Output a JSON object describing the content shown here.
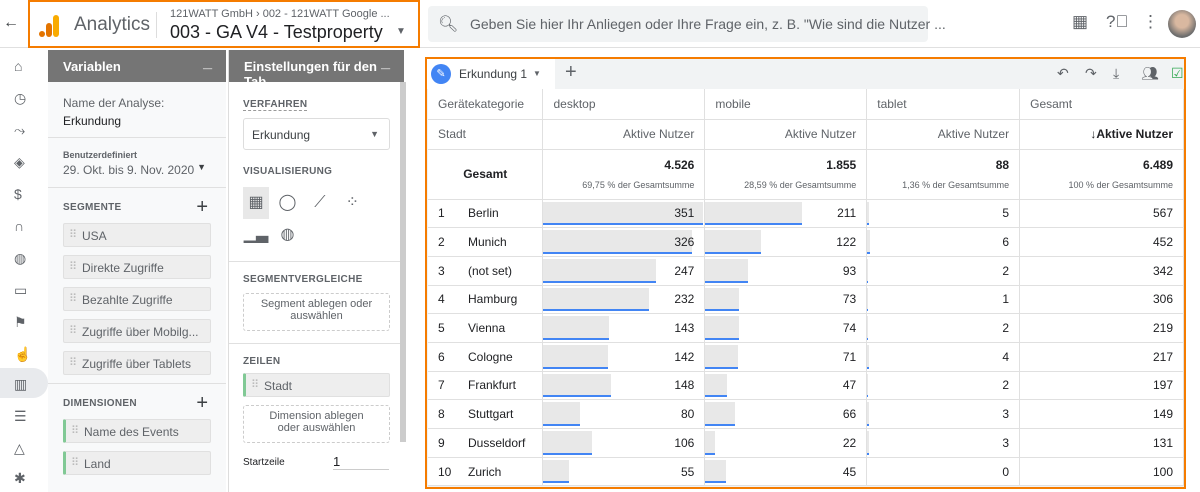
{
  "header": {
    "app_name": "Analytics",
    "breadcrumb": "121WATT GmbH › 002 - 121WATT Google ...",
    "property": "003 - GA V4 - Testproperty",
    "search_placeholder": "Geben Sie hier Ihr Anliegen oder Ihre Frage ein, z. B. \"Wie sind die Nutzer ..."
  },
  "variables": {
    "title": "Variablen",
    "analysis_label": "Name der Analyse:",
    "analysis_name": "Erkundung",
    "date_type": "Benutzerdefiniert",
    "date_range": "29. Okt. bis 9. Nov. 2020",
    "segments_title": "SEGMENTE",
    "segments": [
      "USA",
      "Direkte Zugriffe",
      "Bezahlte Zugriffe",
      "Zugriffe über Mobilg...",
      "Zugriffe über Tablets"
    ],
    "dimensions_title": "DIMENSIONEN",
    "dimensions": [
      "Name des Events",
      "Land"
    ]
  },
  "settings": {
    "title": "Einstellungen für den Tab",
    "method_label": "VERFAHREN",
    "method": "Erkundung",
    "vis_label": "VISUALISIERUNG",
    "segcmp_label": "SEGMENTVERGLEICHE",
    "segcmp_drop": "Segment ablegen oder auswählen",
    "rows_label": "ZEILEN",
    "row_dim": "Stadt",
    "dim_drop": "Dimension ablegen oder auswählen",
    "start_row_label": "Startzeile",
    "start_row": "1"
  },
  "tab": {
    "name": "Erkundung 1"
  },
  "table": {
    "dim_header": "Gerätekategorie",
    "row_header": "Stadt",
    "columns": [
      "desktop",
      "mobile",
      "tablet",
      "Gesamt"
    ],
    "metric": "Aktive Nutzer",
    "sorted_metric": "↓Aktive Nutzer",
    "total_label": "Gesamt",
    "totals": [
      "4.526",
      "1.855",
      "88",
      "6.489"
    ],
    "totals_pct": [
      "69,75 % der Gesamtsumme",
      "28,59 % der Gesamtsumme",
      "1,36 % der Gesamtsumme",
      "100 % der Gesamtsumme"
    ],
    "rows": [
      {
        "i": "1",
        "city": "Berlin",
        "v": [
          351,
          211,
          5,
          567
        ]
      },
      {
        "i": "2",
        "city": "Munich",
        "v": [
          326,
          122,
          6,
          452
        ]
      },
      {
        "i": "3",
        "city": "(not set)",
        "v": [
          247,
          93,
          2,
          342
        ]
      },
      {
        "i": "4",
        "city": "Hamburg",
        "v": [
          232,
          73,
          1,
          306
        ]
      },
      {
        "i": "5",
        "city": "Vienna",
        "v": [
          143,
          74,
          2,
          219
        ]
      },
      {
        "i": "6",
        "city": "Cologne",
        "v": [
          142,
          71,
          4,
          217
        ]
      },
      {
        "i": "7",
        "city": "Frankfurt",
        "v": [
          148,
          47,
          2,
          197
        ]
      },
      {
        "i": "8",
        "city": "Stuttgart",
        "v": [
          80,
          66,
          3,
          149
        ]
      },
      {
        "i": "9",
        "city": "Dusseldorf",
        "v": [
          106,
          22,
          3,
          131
        ]
      },
      {
        "i": "10",
        "city": "Zurich",
        "v": [
          55,
          45,
          0,
          100
        ]
      }
    ]
  },
  "colors": {
    "accent": "#f57c00",
    "bar": "#4285f4"
  }
}
